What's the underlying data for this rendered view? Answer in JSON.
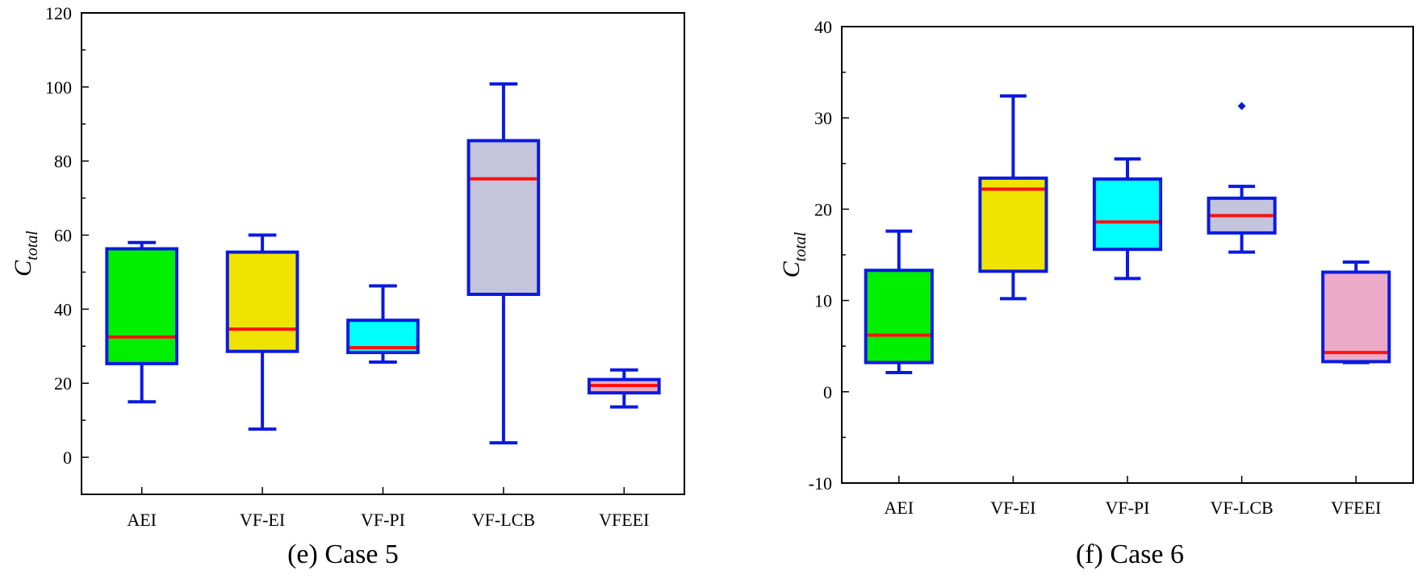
{
  "colors": {
    "box_edge": "#0a1ae0",
    "median": "#ff1010",
    "whisker": "#0a1ae0",
    "axis": "#000000"
  },
  "chart_data": [
    {
      "type": "box",
      "caption": "(e) Case 5",
      "ylabel_main": "C",
      "ylabel_sub": "total",
      "ylim": [
        -10,
        120
      ],
      "yticks": [
        0,
        20,
        40,
        60,
        80,
        100,
        120
      ],
      "ytick_labels": [
        "0",
        "20",
        "40",
        "60",
        "80",
        "100",
        "120"
      ],
      "categories": [
        "AEI",
        "VF-EI",
        "VF-PI",
        "VF-LCB",
        "VFEEI"
      ],
      "fill_colors": [
        "#00f000",
        "#eee400",
        "#00ffff",
        "#c4c4dc",
        "#ebaac8"
      ],
      "boxes": [
        {
          "whisker_low": 15,
          "q1": 25.3,
          "median": 32.5,
          "q3": 56.3,
          "whisker_high": 58,
          "outliers": []
        },
        {
          "whisker_low": 7.6,
          "q1": 28.6,
          "median": 34.6,
          "q3": 55.4,
          "whisker_high": 60,
          "outliers": []
        },
        {
          "whisker_low": 25.7,
          "q1": 28.3,
          "median": 29.6,
          "q3": 37,
          "whisker_high": 46.3,
          "outliers": []
        },
        {
          "whisker_low": 3.9,
          "q1": 44,
          "median": 75.2,
          "q3": 85.5,
          "whisker_high": 100.8,
          "outliers": []
        },
        {
          "whisker_low": 13.6,
          "q1": 17.4,
          "median": 19.4,
          "q3": 21,
          "whisker_high": 23.6,
          "outliers": []
        }
      ]
    },
    {
      "type": "box",
      "caption": "(f) Case 6",
      "ylabel_main": "C",
      "ylabel_sub": "total",
      "ylim": [
        -10,
        40
      ],
      "yticks": [
        -10,
        0,
        10,
        20,
        30,
        40
      ],
      "ytick_labels": [
        "-10",
        "0",
        "10",
        "20",
        "30",
        "40"
      ],
      "categories": [
        "AEI",
        "VF-EI",
        "VF-PI",
        "VF-LCB",
        "VFEEI"
      ],
      "fill_colors": [
        "#00f000",
        "#eee400",
        "#00ffff",
        "#c4c4dc",
        "#ebaac8"
      ],
      "boxes": [
        {
          "whisker_low": 2.1,
          "q1": 3.2,
          "median": 6.2,
          "q3": 13.3,
          "whisker_high": 17.6,
          "outliers": []
        },
        {
          "whisker_low": 10.2,
          "q1": 13.2,
          "median": 22.2,
          "q3": 23.4,
          "whisker_high": 32.4,
          "outliers": []
        },
        {
          "whisker_low": 12.4,
          "q1": 15.6,
          "median": 18.6,
          "q3": 23.3,
          "whisker_high": 25.5,
          "outliers": []
        },
        {
          "whisker_low": 15.3,
          "q1": 17.4,
          "median": 19.3,
          "q3": 21.2,
          "whisker_high": 22.5,
          "outliers": [
            31.3
          ]
        },
        {
          "whisker_low": 3.2,
          "q1": 3.3,
          "median": 4.3,
          "q3": 13.1,
          "whisker_high": 14.2,
          "outliers": []
        }
      ]
    }
  ]
}
